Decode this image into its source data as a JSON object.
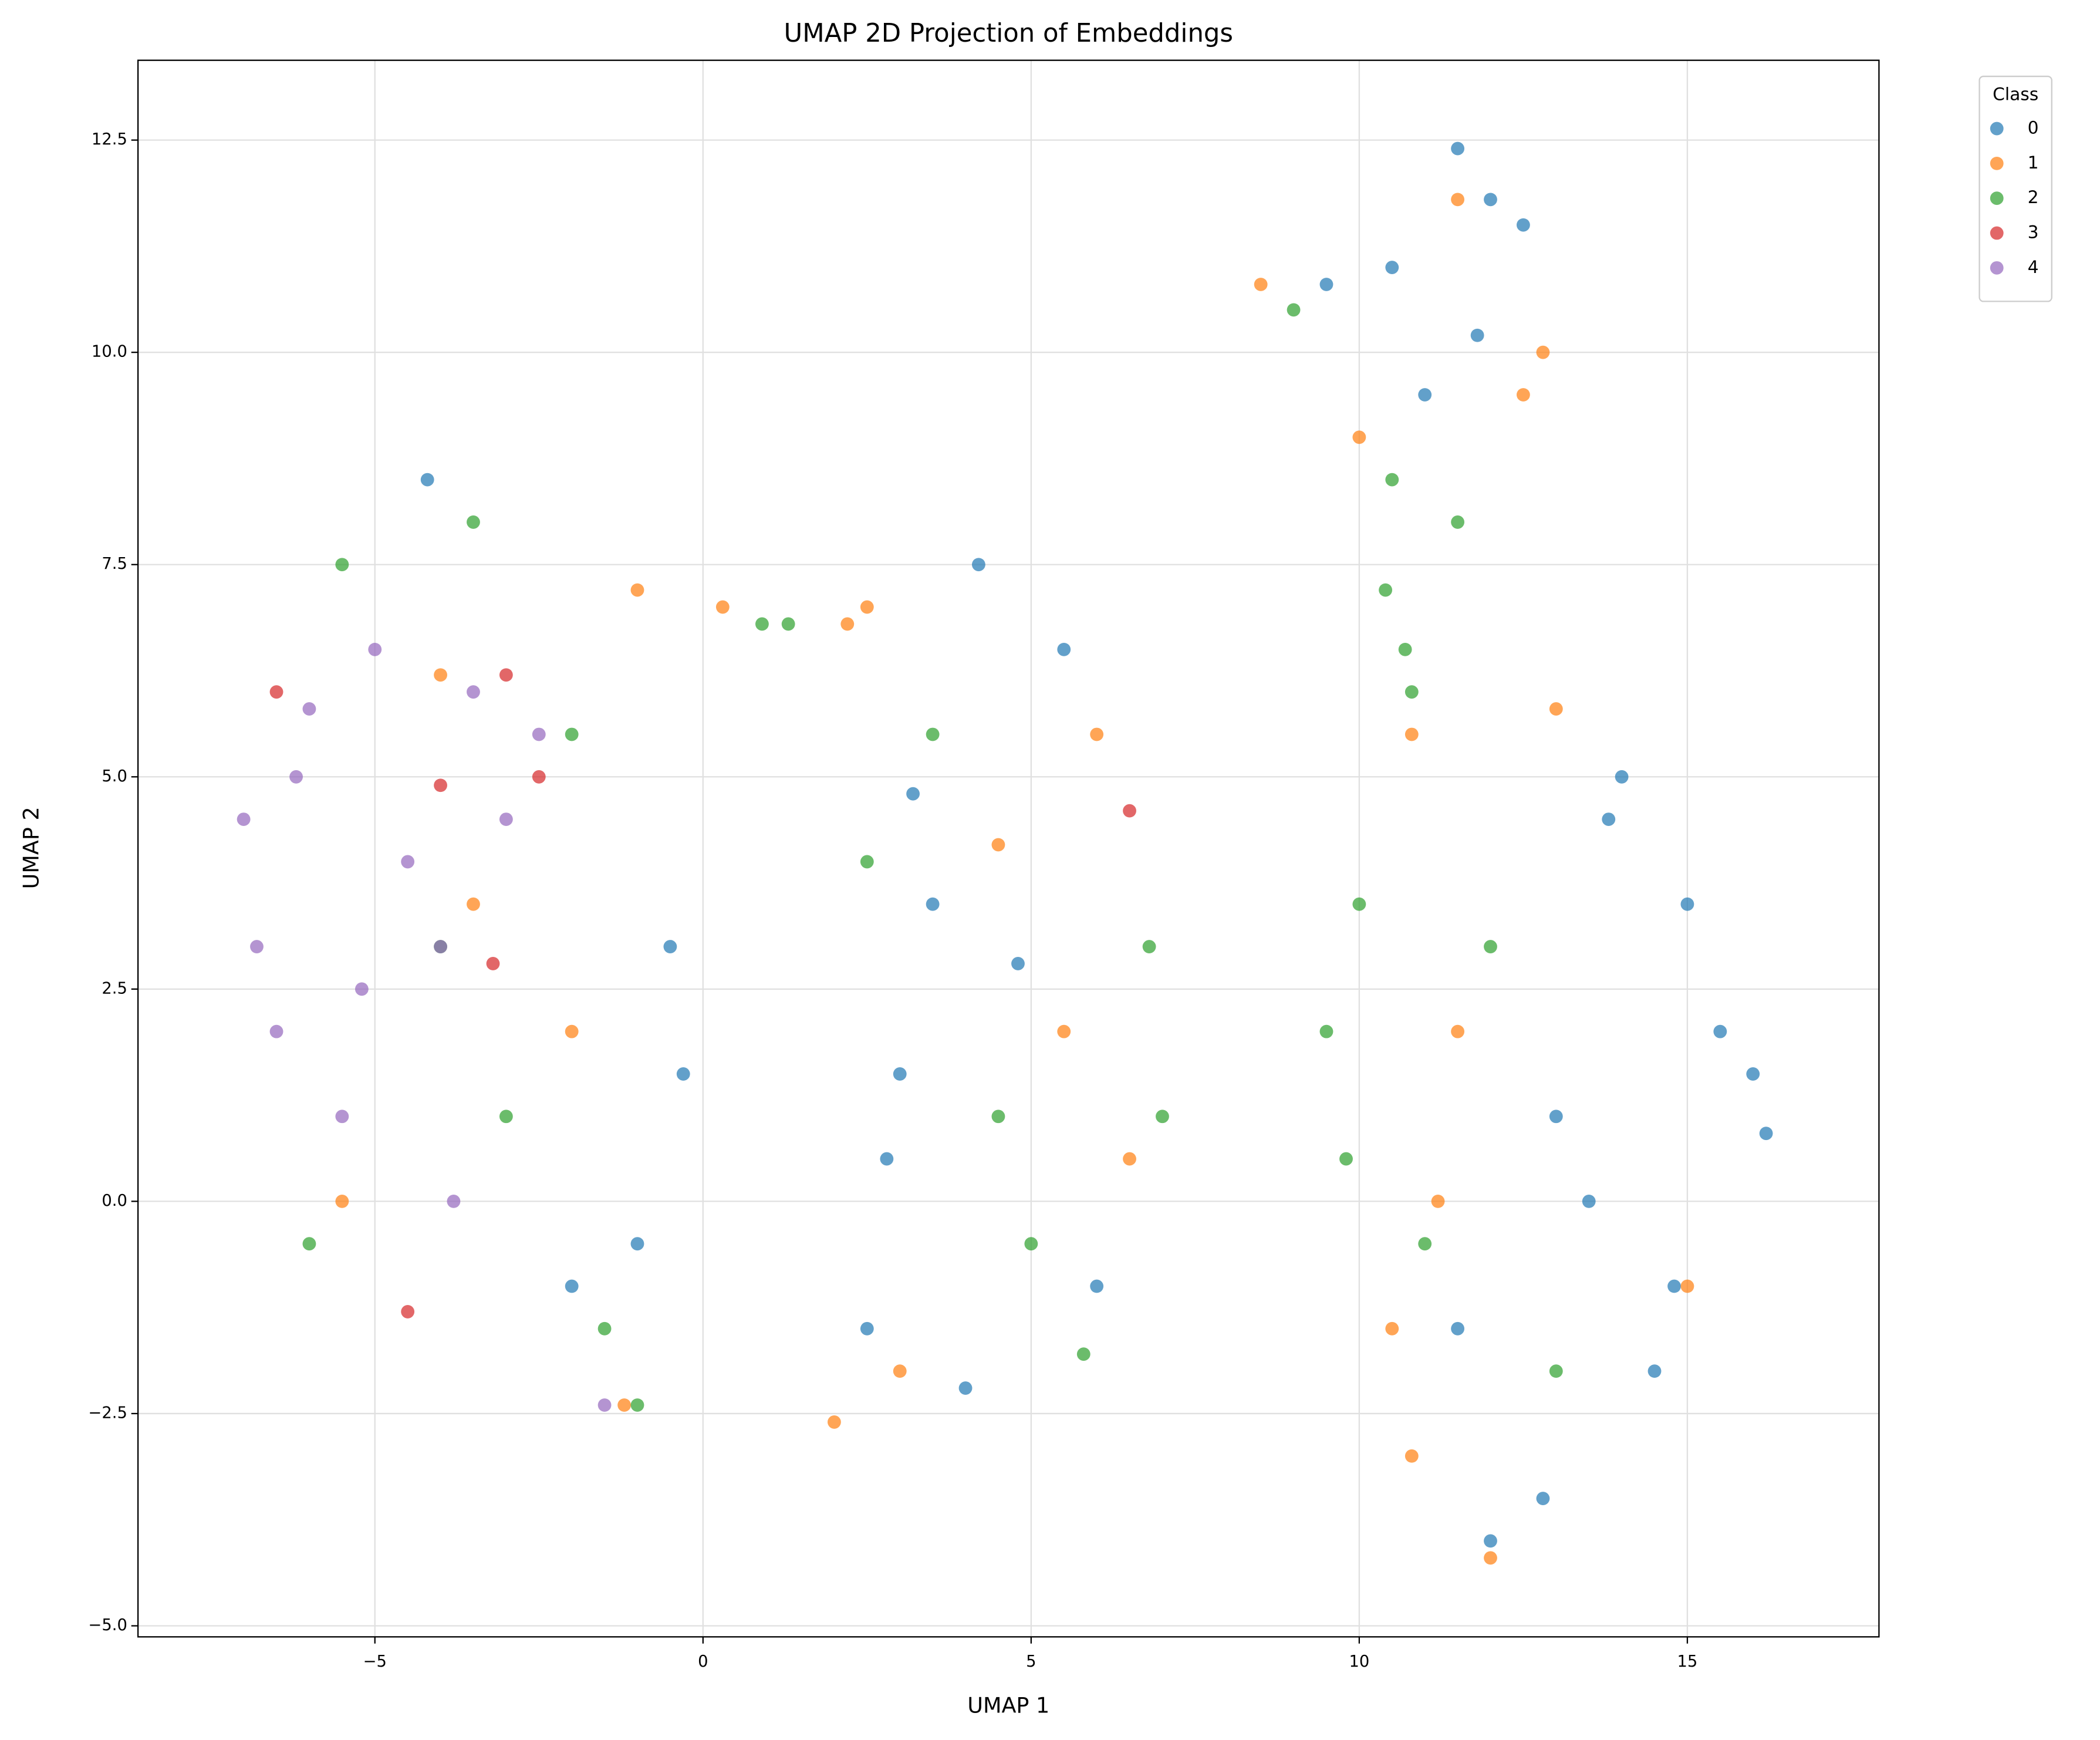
{
  "chart_data": {
    "type": "scatter",
    "title": "UMAP 2D Projection of Embeddings",
    "x_label": "UMAP 1",
    "y_label": "UMAP 2",
    "legend_title": "Class",
    "legend": "outside upper right",
    "grid": true,
    "alpha": 0.7,
    "xlim": [
      -8.61,
      17.92
    ],
    "ylim": [
      -5.13,
      13.44
    ],
    "xticks": [
      {
        "value": -5,
        "label": "−5"
      },
      0,
      5,
      10,
      15
    ],
    "yticks": [
      {
        "value": -5,
        "label": "−5.0"
      },
      {
        "value": -2.5,
        "label": "−2.5"
      },
      {
        "value": 0,
        "label": "0.0"
      },
      2.5,
      {
        "value": 5,
        "label": "5.0"
      },
      7.5,
      {
        "value": 10,
        "label": "10.0"
      },
      12.5
    ],
    "series": [
      {
        "name": "0",
        "color": "#1f77b4",
        "x": [
          -0.5,
          -0.3,
          -1.0,
          -4.2,
          -2.0,
          3.0,
          4.2,
          2.5,
          3.5,
          5.5,
          4.0,
          2.8,
          6.0,
          3.2,
          4.8,
          11.5,
          12.0,
          10.5,
          11.0,
          12.5,
          9.5,
          11.8,
          14.0,
          15.5,
          16.2,
          13.5,
          14.8,
          12.8,
          15.0,
          13.0,
          14.5,
          16.0,
          12.0,
          13.8,
          11.5
        ],
        "y": [
          3.0,
          1.5,
          -0.5,
          8.5,
          -1.0,
          1.5,
          7.5,
          -1.5,
          3.5,
          6.5,
          -2.2,
          0.5,
          -1.0,
          4.8,
          2.8,
          12.4,
          11.8,
          11.0,
          9.5,
          11.5,
          10.8,
          10.2,
          5.0,
          2.0,
          0.8,
          0.0,
          -1.0,
          -3.5,
          3.5,
          1.0,
          -2.0,
          1.5,
          -4.0,
          4.5,
          -1.5
        ]
      },
      {
        "name": "1",
        "color": "#ff7f0e",
        "x": [
          -1.0,
          0.3,
          -3.5,
          -2.0,
          -5.5,
          -1.2,
          -4.0,
          2.2,
          2.0,
          5.5,
          3.0,
          6.5,
          4.5,
          2.5,
          6.0,
          8.5,
          12.5,
          12.8,
          10.0,
          11.5,
          10.8,
          12.0,
          11.5,
          10.5,
          13.0,
          11.2,
          15.0,
          10.8
        ],
        "y": [
          7.2,
          7.0,
          3.5,
          2.0,
          0.0,
          -2.4,
          6.2,
          6.8,
          -2.6,
          2.0,
          -2.0,
          0.5,
          4.2,
          7.0,
          5.5,
          10.8,
          9.5,
          10.0,
          9.0,
          11.8,
          5.5,
          -4.2,
          2.0,
          -1.5,
          5.8,
          0.0,
          -1.0,
          -3.0
        ]
      },
      {
        "name": "2",
        "color": "#2ca02c",
        "x": [
          -5.5,
          -2.0,
          -3.0,
          -1.5,
          -4.0,
          -6.0,
          -1.0,
          -3.5,
          0.9,
          1.3,
          3.5,
          6.8,
          5.0,
          4.5,
          2.5,
          7.0,
          5.8,
          10.5,
          10.7,
          9.0,
          11.5,
          10.4,
          10.8,
          9.5,
          10.0,
          11.0,
          12.0,
          13.0,
          9.8
        ],
        "y": [
          7.5,
          5.5,
          1.0,
          -1.5,
          3.0,
          -0.5,
          -2.4,
          8.0,
          6.8,
          6.8,
          5.5,
          3.0,
          -0.5,
          1.0,
          4.0,
          1.0,
          -1.8,
          8.5,
          6.5,
          10.5,
          8.0,
          7.2,
          6.0,
          2.0,
          3.5,
          -0.5,
          3.0,
          -2.0,
          0.5
        ]
      },
      {
        "name": "3",
        "color": "#d62728",
        "x": [
          -6.5,
          -4.0,
          -3.0,
          -2.5,
          -3.2,
          -4.5,
          6.5
        ],
        "y": [
          6.0,
          4.9,
          6.2,
          5.0,
          2.8,
          -1.3,
          4.6
        ]
      },
      {
        "name": "4",
        "color": "#9467bd",
        "x": [
          -7.0,
          -6.8,
          -6.0,
          -5.0,
          -4.5,
          -3.5,
          -3.0,
          -2.5,
          -6.5,
          -5.5,
          -4.0,
          -3.8,
          -6.2,
          -5.2,
          -1.5
        ],
        "y": [
          4.5,
          3.0,
          5.8,
          6.5,
          4.0,
          6.0,
          4.5,
          5.5,
          2.0,
          1.0,
          3.0,
          0.0,
          5.0,
          2.5,
          -2.4
        ]
      }
    ]
  }
}
